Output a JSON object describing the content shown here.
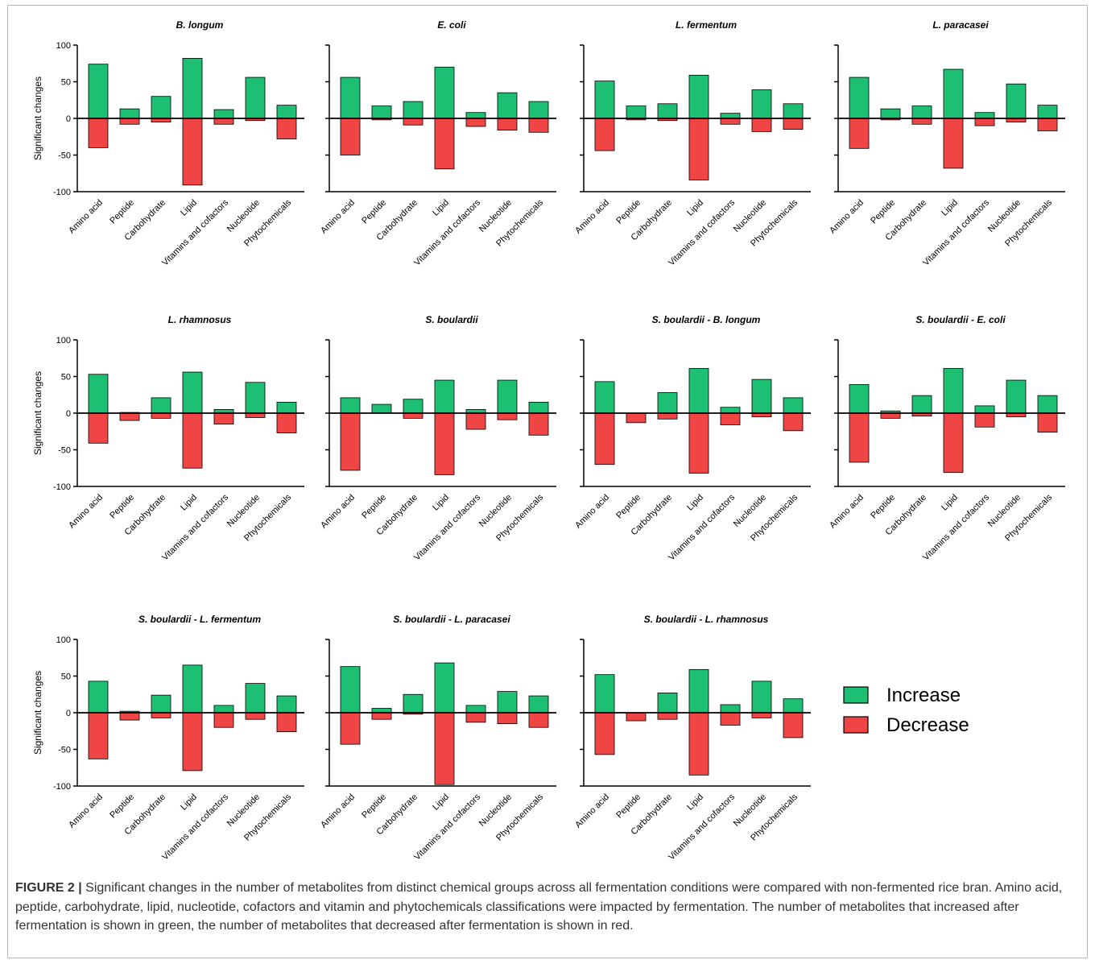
{
  "figure_label": "FIGURE 2 |",
  "caption_text": " Significant changes in the number of metabolites from distinct chemical groups across all fermentation conditions were compared with non-fermented rice bran. Amino acid, peptide, carbohydrate, lipid, nucleotide, cofactors and vitamin and phytochemicals classifications were impacted by fermentation. The number of metabolites that increased after fermentation is shown in green, the number of metabolites that decreased after fermentation is shown in red.",
  "legend": {
    "items": [
      {
        "label": "Increase",
        "color": "#1dbf73"
      },
      {
        "label": "Decrease",
        "color": "#f04545"
      }
    ]
  },
  "chart_data": [
    {
      "type": "bar",
      "title": "B. longum",
      "ylabel": "Significant changes",
      "ylim": [
        -100,
        100
      ],
      "yticks": [
        100,
        50,
        0,
        -50,
        -100
      ],
      "categories": [
        "Amino acid",
        "Peptide",
        "Carbohydrate",
        "Lipid",
        "Vitamins and cofactors",
        "Nucleotide",
        "Phytochemicals"
      ],
      "series": [
        {
          "name": "Increase",
          "values": [
            74,
            13,
            30,
            82,
            12,
            56,
            18
          ]
        },
        {
          "name": "Decrease",
          "values": [
            -40,
            -8,
            -5,
            -91,
            -8,
            -3,
            -28
          ]
        }
      ]
    },
    {
      "type": "bar",
      "title": "E. coli",
      "ylabel": "",
      "ylim": [
        -100,
        100
      ],
      "yticks": [],
      "categories": [
        "Amino acid",
        "Peptide",
        "Carbohydrate",
        "Lipid",
        "Vitamins and cofactors",
        "Nucleotide",
        "Phytochemicals"
      ],
      "series": [
        {
          "name": "Increase",
          "values": [
            56,
            17,
            23,
            70,
            8,
            35,
            23
          ]
        },
        {
          "name": "Decrease",
          "values": [
            -50,
            -2,
            -9,
            -69,
            -11,
            -16,
            -19
          ]
        }
      ]
    },
    {
      "type": "bar",
      "title": "L. fermentum",
      "ylabel": "",
      "ylim": [
        -100,
        100
      ],
      "yticks": [],
      "categories": [
        "Amino acid",
        "Peptide",
        "Carbohydrate",
        "Lipid",
        "Vitamins and cofactors",
        "Nucleotide",
        "Phytochemicals"
      ],
      "series": [
        {
          "name": "Increase",
          "values": [
            51,
            17,
            20,
            59,
            7,
            39,
            20
          ]
        },
        {
          "name": "Decrease",
          "values": [
            -44,
            -2,
            -3,
            -84,
            -8,
            -18,
            -15
          ]
        }
      ]
    },
    {
      "type": "bar",
      "title": "L. paracasei",
      "ylabel": "",
      "ylim": [
        -100,
        100
      ],
      "yticks": [],
      "categories": [
        "Amino acid",
        "Peptide",
        "Carbohydrate",
        "Lipid",
        "Vitamins and cofactors",
        "Nucleotide",
        "Phytochemicals"
      ],
      "series": [
        {
          "name": "Increase",
          "values": [
            56,
            13,
            17,
            67,
            8,
            47,
            18
          ]
        },
        {
          "name": "Decrease",
          "values": [
            -41,
            -2,
            -8,
            -68,
            -10,
            -5,
            -17
          ]
        }
      ]
    },
    {
      "type": "bar",
      "title": "L. rhamnosus",
      "ylabel": "Significant changes",
      "ylim": [
        -100,
        100
      ],
      "yticks": [
        100,
        50,
        0,
        -50,
        -100
      ],
      "categories": [
        "Amino acid",
        "Peptide",
        "Carbohydrate",
        "Lipid",
        "Vitamins and cofactors",
        "Nucleotide",
        "Phytochemicals"
      ],
      "series": [
        {
          "name": "Increase",
          "values": [
            53,
            1,
            21,
            56,
            5,
            42,
            15
          ]
        },
        {
          "name": "Decrease",
          "values": [
            -41,
            -10,
            -7,
            -75,
            -15,
            -6,
            -27
          ]
        }
      ]
    },
    {
      "type": "bar",
      "title": "S. boulardii",
      "ylabel": "",
      "ylim": [
        -100,
        100
      ],
      "yticks": [],
      "categories": [
        "Amino acid",
        "Peptide",
        "Carbohydrate",
        "Lipid",
        "Vitamins and cofactors",
        "Nucleotide",
        "Phytochemicals"
      ],
      "series": [
        {
          "name": "Increase",
          "values": [
            21,
            12,
            19,
            45,
            5,
            45,
            15
          ]
        },
        {
          "name": "Decrease",
          "values": [
            -78,
            0,
            -7,
            -84,
            -22,
            -9,
            -30
          ]
        }
      ]
    },
    {
      "type": "bar",
      "title": "S. boulardii - B. longum",
      "ylabel": "",
      "ylim": [
        -100,
        100
      ],
      "yticks": [],
      "categories": [
        "Amino acid",
        "Peptide",
        "Carbohydrate",
        "Lipid",
        "Vitamins and cofactors",
        "Nucleotide",
        "Phytochemicals"
      ],
      "series": [
        {
          "name": "Increase",
          "values": [
            43,
            0,
            28,
            61,
            8,
            46,
            21
          ]
        },
        {
          "name": "Decrease",
          "values": [
            -70,
            -13,
            -8,
            -82,
            -16,
            -5,
            -24
          ]
        }
      ]
    },
    {
      "type": "bar",
      "title": "S. boulardii - E. coli",
      "ylabel": "",
      "ylim": [
        -100,
        100
      ],
      "yticks": [],
      "categories": [
        "Amino acid",
        "Peptide",
        "Carbohydrate",
        "Lipid",
        "Vitamins and cofactors",
        "Nucleotide",
        "Phytochemicals"
      ],
      "series": [
        {
          "name": "Increase",
          "values": [
            39,
            3,
            24,
            61,
            10,
            45,
            24
          ]
        },
        {
          "name": "Decrease",
          "values": [
            -67,
            -7,
            -4,
            -81,
            -19,
            -5,
            -26
          ]
        }
      ]
    },
    {
      "type": "bar",
      "title": "S. boulardii - L.  fermentum",
      "ylabel": "Significant changes",
      "ylim": [
        -100,
        100
      ],
      "yticks": [
        100,
        50,
        0,
        -50,
        -100
      ],
      "categories": [
        "Amino acid",
        "Peptide",
        "Carbohydrate",
        "Lipid",
        "Vitamins and cofactors",
        "Nucleotide",
        "Phytochemicals"
      ],
      "series": [
        {
          "name": "Increase",
          "values": [
            43,
            2,
            24,
            65,
            10,
            40,
            23
          ]
        },
        {
          "name": "Decrease",
          "values": [
            -63,
            -10,
            -7,
            -79,
            -20,
            -9,
            -26
          ]
        }
      ]
    },
    {
      "type": "bar",
      "title": "S. boulardii - L.  paracasei",
      "ylabel": "",
      "ylim": [
        -100,
        100
      ],
      "yticks": [],
      "categories": [
        "Amino acid",
        "Peptide",
        "Carbohydrate",
        "Lipid",
        "Vitamins and cofactors",
        "Nucleotide",
        "Phytochemicals"
      ],
      "series": [
        {
          "name": "Increase",
          "values": [
            63,
            6,
            25,
            68,
            10,
            29,
            23
          ]
        },
        {
          "name": "Decrease",
          "values": [
            -43,
            -9,
            -2,
            -98,
            -13,
            -15,
            -20
          ]
        }
      ]
    },
    {
      "type": "bar",
      "title": "S. boulardii - L. rhamnosus",
      "ylabel": "",
      "ylim": [
        -100,
        100
      ],
      "yticks": [],
      "categories": [
        "Amino acid",
        "Peptide",
        "Carbohydrate",
        "Lipid",
        "Vitamins and cofactors",
        "Nucleotide",
        "Phytochemicals"
      ],
      "series": [
        {
          "name": "Increase",
          "values": [
            52,
            0,
            27,
            59,
            11,
            43,
            19
          ]
        },
        {
          "name": "Decrease",
          "values": [
            -57,
            -11,
            -9,
            -85,
            -17,
            -7,
            -34
          ]
        }
      ]
    }
  ]
}
